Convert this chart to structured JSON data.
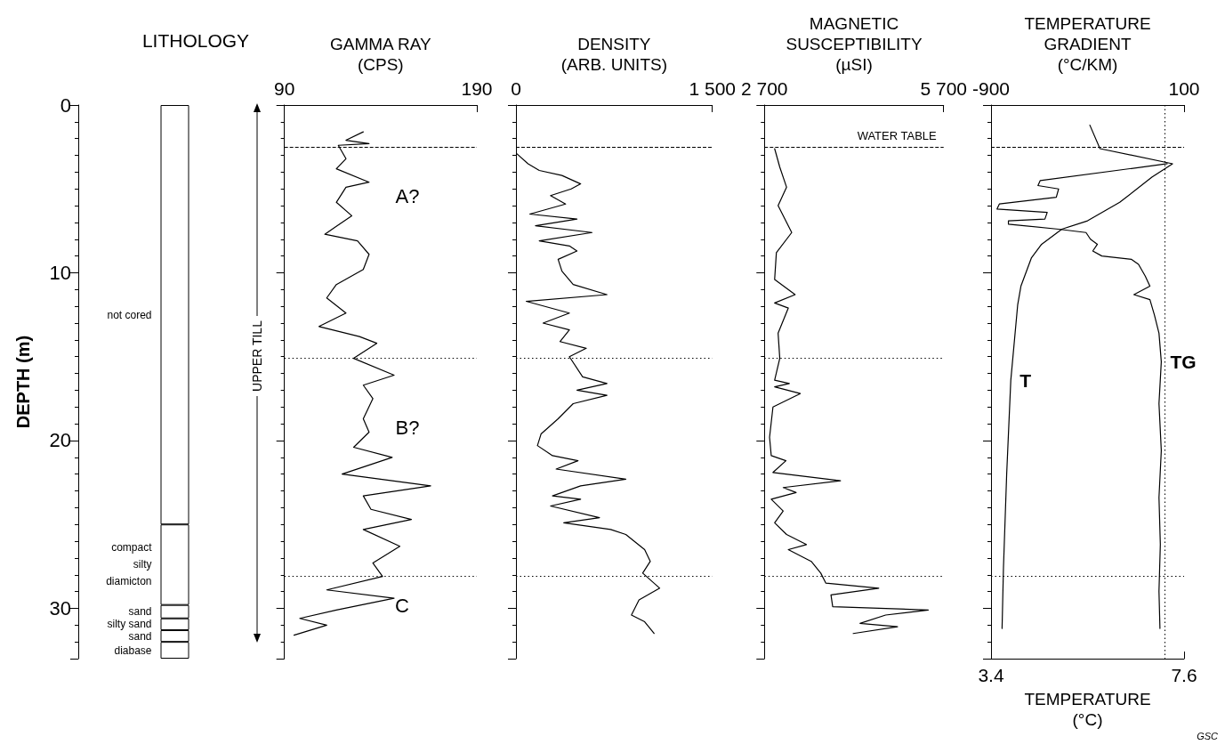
{
  "chart_data": [
    {
      "type": "bar",
      "title": "LITHOLOGY",
      "ylabel": "DEPTH (m)",
      "categories": [
        null
      ],
      "stacked": true,
      "ylim": [
        33,
        0
      ],
      "yticks": [
        0,
        10,
        20,
        30
      ],
      "tick_labels": "y",
      "series": [
        {
          "name": "not cored",
          "color": "#ffffff",
          "values": [
            25
          ]
        },
        {
          "name": "compact silty diamicton",
          "color": "#ffffff",
          "values": [
            4.8
          ]
        },
        {
          "name": "sand",
          "color": "#ffffff",
          "values": [
            0.8
          ]
        },
        {
          "name": "silty sand",
          "color": "#ffffff",
          "values": [
            0.7
          ]
        },
        {
          "name": "sand",
          "color": "#ffffff",
          "values": [
            0.7
          ]
        },
        {
          "name": "diabase",
          "color": "#ffffff",
          "values": [
            1.0
          ]
        }
      ],
      "annotations": [
        "UPPER TILL"
      ]
    },
    {
      "type": "line",
      "xlabel": "GAMMA RAY (CPS)",
      "xlim": [
        90,
        190
      ],
      "xticks": [
        90,
        190
      ],
      "ylim": [
        33,
        0
      ],
      "yticks": [
        0,
        10,
        20,
        30
      ],
      "tick_labels": "x",
      "series": [
        {
          "color": "#000000",
          "x": [
            131,
            122,
            134,
            118,
            122,
            117,
            134,
            122,
            117,
            125,
            111,
            128,
            134,
            131,
            117,
            112,
            122,
            108,
            129,
            138,
            126,
            147,
            131,
            136,
            131,
            134,
            126,
            146,
            120,
            166,
            131,
            135,
            156,
            131,
            150,
            136,
            141,
            112,
            147,
            117,
            98,
            112,
            95
          ],
          "values": [
            1.6,
            2.1,
            2.3,
            2.4,
            3.2,
            3.8,
            4.6,
            4.9,
            5.8,
            6.6,
            7.7,
            8.1,
            8.9,
            9.8,
            10.7,
            11.5,
            12.4,
            13.2,
            13.8,
            14.2,
            15.1,
            16.1,
            16.7,
            17.5,
            18.7,
            19.5,
            20.4,
            21.0,
            22.0,
            22.7,
            23.3,
            24.1,
            24.7,
            25.3,
            26.3,
            27.3,
            28.1,
            28.9,
            29.4,
            30.1,
            30.6,
            31.0,
            31.6
          ]
        }
      ],
      "ref_lines": [
        {
          "axis": "y",
          "value": 2.5,
          "line_style": "dashed"
        },
        {
          "axis": "y",
          "value": 15.1,
          "line_style": "dotted"
        },
        {
          "axis": "y",
          "value": 28.1,
          "line_style": "dotted"
        }
      ],
      "annotations": [
        "A?",
        "B?",
        "C"
      ]
    },
    {
      "type": "line",
      "xlabel": "DENSITY (ARB. UNITS)",
      "xlim": [
        0,
        1500
      ],
      "xticks": [
        0,
        {
          "value": 1500,
          "label": "1 500"
        }
      ],
      "ylim": [
        33,
        0
      ],
      "yticks": [
        0,
        10,
        20,
        30
      ],
      "tick_labels": "x",
      "series": [
        {
          "color": "#000000",
          "x": [
            6,
            92,
            178,
            351,
            494,
            422,
            264,
            379,
            106,
            466,
            149,
            581,
            178,
            408,
            466,
            322,
            351,
            437,
            695,
            78,
            408,
            207,
            408,
            336,
            537,
            408,
            509,
            695,
            466,
            695,
            437,
            322,
            192,
            164,
            279,
            474,
            307,
            839,
            494,
            279,
            494,
            264,
            638,
            365,
            724,
            839,
            983,
            1026,
            968,
            1098,
            940,
            882,
            983,
            1055
          ],
          "values": [
            2.9,
            3.5,
            3.9,
            4.2,
            4.7,
            5.0,
            5.4,
            5.9,
            6.5,
            6.8,
            7.2,
            7.6,
            8.1,
            8.4,
            8.7,
            9.2,
            9.9,
            10.7,
            11.3,
            11.7,
            12.4,
            13.0,
            13.4,
            14.1,
            14.5,
            15.0,
            16.2,
            16.6,
            17.0,
            17.3,
            17.8,
            18.7,
            19.6,
            20.3,
            20.9,
            21.2,
            21.7,
            22.3,
            22.7,
            23.3,
            23.5,
            23.9,
            24.6,
            24.9,
            25.3,
            25.6,
            26.5,
            27.2,
            27.9,
            28.8,
            29.5,
            30.4,
            30.8,
            31.5
          ]
        }
      ],
      "ref_lines": [
        {
          "axis": "y",
          "value": 2.5,
          "line_style": "dashed"
        },
        {
          "axis": "y",
          "value": 15.1,
          "line_style": "dotted"
        },
        {
          "axis": "y",
          "value": 28.1,
          "line_style": "dotted"
        }
      ]
    },
    {
      "type": "line",
      "xlabel": "MAGNETIC SUSCEPTIBILITY (µSI)",
      "xlim": [
        2700,
        5700
      ],
      "xticks": [
        {
          "value": 2700,
          "label": "2 700"
        },
        {
          "value": 5700,
          "label": "5 700"
        }
      ],
      "ylim": [
        33,
        0
      ],
      "yticks": [
        0,
        10,
        20,
        30
      ],
      "tick_labels": "x",
      "series": [
        {
          "color": "#000000",
          "x": [
            2871,
            2957,
            3071,
            2929,
            3157,
            2900,
            2871,
            3214,
            2871,
            3100,
            2929,
            2957,
            2871,
            3117,
            2871,
            3300,
            2843,
            2786,
            2814,
            3060,
            2843,
            3974,
            3014,
            3231,
            2814,
            3014,
            2871,
            3071,
            3403,
            3100,
            3483,
            3643,
            3729,
            4614,
            3814,
            3843,
            5443,
            4729,
            4300,
            4929,
            4186
          ],
          "values": [
            2.6,
            3.7,
            4.9,
            6.0,
            7.6,
            8.8,
            10.4,
            11.3,
            11.8,
            12.1,
            13.6,
            15.1,
            16.4,
            16.6,
            16.8,
            17.2,
            18.0,
            19.8,
            20.9,
            21.2,
            21.9,
            22.4,
            22.8,
            23.1,
            23.5,
            24.2,
            24.9,
            25.6,
            26.2,
            26.5,
            27.2,
            27.9,
            28.5,
            28.8,
            29.2,
            29.9,
            30.1,
            30.4,
            30.9,
            31.1,
            31.5
          ]
        }
      ],
      "ref_lines": [
        {
          "axis": "y",
          "value": 2.5,
          "line_style": "dashed",
          "label": "WATER TABLE"
        },
        {
          "axis": "y",
          "value": 15.1,
          "line_style": "dotted"
        },
        {
          "axis": "y",
          "value": 28.1,
          "line_style": "dotted"
        }
      ]
    },
    {
      "type": "line",
      "xlabel": "TEMPERATURE (°C)",
      "xlim": [
        3.4,
        7.6
      ],
      "xticks": [
        3.4,
        7.6
      ],
      "x2label": "TEMPERATURE GRADIENT (°C/KM)",
      "x2lim": [
        -900,
        100
      ],
      "x2ticks": [
        -900,
        100
      ],
      "ylim": [
        33,
        0
      ],
      "yticks": [
        0,
        10,
        20,
        30
      ],
      "tick_labels": "x",
      "series": [
        {
          "name": "T",
          "color": "#000000",
          "x": [
            5.55,
            5.77,
            7.35,
            6.9,
            6.2,
            5.5,
            4.94,
            4.5,
            4.28,
            4.05,
            3.98,
            3.83,
            3.74,
            3.67,
            3.64
          ],
          "values": [
            1.2,
            2.6,
            3.5,
            4.3,
            5.8,
            6.9,
            7.4,
            8.3,
            9.1,
            10.8,
            11.9,
            16.4,
            22.0,
            27.6,
            31.2
          ]
        },
        {
          "name": "TG",
          "color": "#000000",
          "axis": "x2",
          "x": [
            13,
            -645,
            -657,
            -550,
            -562,
            -857,
            -869,
            -609,
            -621,
            -810,
            -810,
            -550,
            -408,
            -385,
            -349,
            -373,
            -326,
            -172,
            -136,
            -101,
            -77,
            -160,
            -77,
            -54,
            -30,
            -18,
            -30,
            -18,
            -30,
            -23,
            -30,
            -25
          ],
          "values": [
            3.5,
            4.5,
            4.8,
            5.0,
            5.5,
            5.9,
            6.2,
            6.4,
            6.8,
            6.9,
            7.1,
            7.4,
            7.6,
            8.0,
            8.3,
            8.7,
            9.0,
            9.2,
            9.5,
            10.2,
            10.8,
            11.3,
            11.6,
            12.5,
            13.6,
            15.3,
            17.8,
            20.6,
            23.4,
            26.2,
            29.0,
            31.2
          ]
        }
      ],
      "ref_lines": [
        {
          "axis": "y",
          "value": 2.5,
          "line_style": "dashed"
        },
        {
          "axis": "y",
          "value": 28.1,
          "line_style": "dotted"
        },
        {
          "axis": "x2",
          "value": 0,
          "line_style": "dotted"
        }
      ],
      "annotations": [
        "GSC"
      ]
    }
  ]
}
